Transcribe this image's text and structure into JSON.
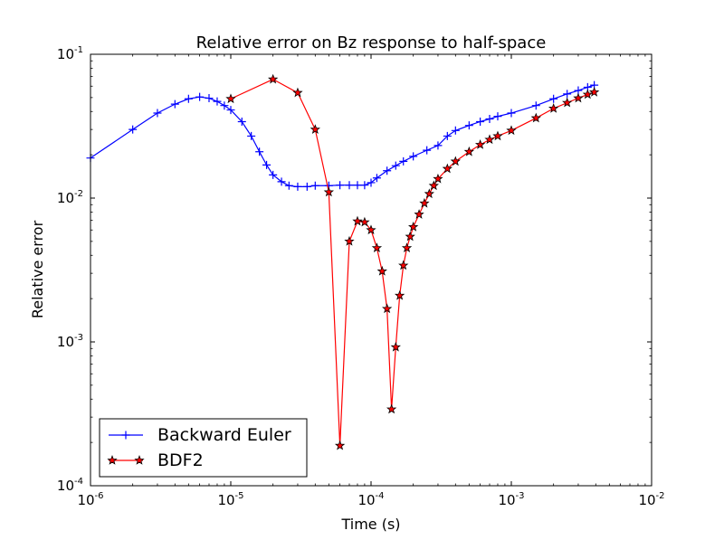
{
  "chart_data": {
    "type": "line",
    "title": "Relative error on Bz response to half-space",
    "xlabel": "Time (s)",
    "ylabel": "Relative error",
    "x_scale": "log",
    "y_scale": "log",
    "xlim": [
      1e-06,
      0.01
    ],
    "ylim": [
      0.0001,
      0.1
    ],
    "x_ticks": [
      {
        "value": 1e-06,
        "base": "10",
        "exp": "-6"
      },
      {
        "value": 1e-05,
        "base": "10",
        "exp": "-5"
      },
      {
        "value": 0.0001,
        "base": "10",
        "exp": "-4"
      },
      {
        "value": 0.001,
        "base": "10",
        "exp": "-3"
      },
      {
        "value": 0.01,
        "base": "10",
        "exp": "-2"
      }
    ],
    "y_ticks": [
      {
        "value": 0.0001,
        "base": "10",
        "exp": "-4"
      },
      {
        "value": 0.001,
        "base": "10",
        "exp": "-3"
      },
      {
        "value": 0.01,
        "base": "10",
        "exp": "-2"
      },
      {
        "value": 0.1,
        "base": "10",
        "exp": "-1"
      }
    ],
    "grid": false,
    "legend_position": "lower-left",
    "series": [
      {
        "name": "Backward Euler",
        "color": "#0000ff",
        "marker": "plus",
        "x": [
          1e-06,
          2e-06,
          3e-06,
          4e-06,
          5e-06,
          6e-06,
          7e-06,
          8e-06,
          9e-06,
          1e-05,
          1.2e-05,
          1.4e-05,
          1.6e-05,
          1.8e-05,
          2e-05,
          2.3e-05,
          2.6e-05,
          3e-05,
          3.5e-05,
          4e-05,
          5e-05,
          6e-05,
          7e-05,
          8e-05,
          9e-05,
          0.0001,
          0.00011,
          0.00013,
          0.00015,
          0.00017,
          0.0002,
          0.00025,
          0.0003,
          0.00035,
          0.0004,
          0.0005,
          0.0006,
          0.0007,
          0.0008,
          0.001,
          0.0015,
          0.002,
          0.0025,
          0.003,
          0.0035,
          0.0039
        ],
        "y": [
          0.019,
          0.03,
          0.039,
          0.045,
          0.049,
          0.0505,
          0.0495,
          0.047,
          0.044,
          0.041,
          0.034,
          0.027,
          0.021,
          0.017,
          0.0145,
          0.013,
          0.0122,
          0.012,
          0.012,
          0.0122,
          0.0122,
          0.0123,
          0.0123,
          0.0123,
          0.0123,
          0.0128,
          0.0138,
          0.0155,
          0.0168,
          0.018,
          0.0195,
          0.0215,
          0.0232,
          0.027,
          0.0295,
          0.032,
          0.034,
          0.0355,
          0.037,
          0.039,
          0.044,
          0.049,
          0.053,
          0.056,
          0.059,
          0.061
        ]
      },
      {
        "name": "BDF2",
        "color": "#ff0000",
        "marker": "star",
        "x": [
          1e-05,
          2e-05,
          3e-05,
          4e-05,
          5e-05,
          6e-05,
          7e-05,
          8e-05,
          9e-05,
          0.0001,
          0.00011,
          0.00012,
          0.00013,
          0.00014,
          0.00015,
          0.00016,
          0.00017,
          0.00018,
          0.00019,
          0.0002,
          0.00022,
          0.00024,
          0.00026,
          0.00028,
          0.0003,
          0.00035,
          0.0004,
          0.0005,
          0.0006,
          0.0007,
          0.0008,
          0.001,
          0.0015,
          0.002,
          0.0025,
          0.003,
          0.0035,
          0.0039
        ],
        "y": [
          0.049,
          0.067,
          0.054,
          0.03,
          0.011,
          0.00019,
          0.005,
          0.0069,
          0.0068,
          0.006,
          0.0045,
          0.0031,
          0.0017,
          0.00034,
          0.00092,
          0.0021,
          0.0034,
          0.0045,
          0.0054,
          0.0063,
          0.0077,
          0.0092,
          0.0107,
          0.0122,
          0.0136,
          0.016,
          0.018,
          0.021,
          0.0235,
          0.0255,
          0.027,
          0.0295,
          0.036,
          0.042,
          0.046,
          0.0495,
          0.0525,
          0.0545
        ]
      }
    ]
  }
}
